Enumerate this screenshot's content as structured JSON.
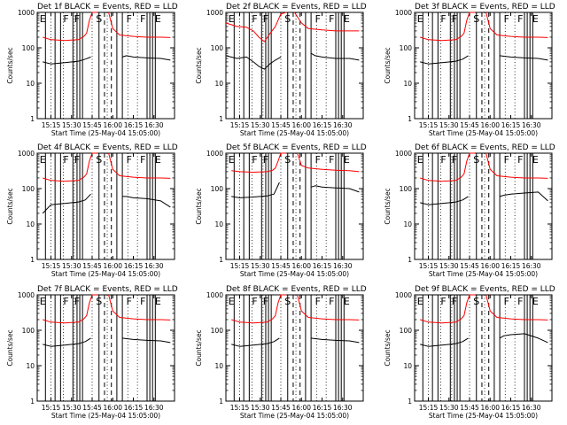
{
  "figure": {
    "common": {
      "xlabel": "Start Time (25-May-04 15:05:00)",
      "ylabel": "Counts/sec",
      "x_ticks": [
        "15:15",
        "15:30",
        "15:45",
        "16:00",
        "16:15",
        "16:30"
      ],
      "y_ticks": [
        "1",
        "10",
        "100",
        "1000"
      ],
      "x_range_minutes": [
        0,
        100
      ],
      "y_range": [
        1,
        1000
      ],
      "y_scale": "log",
      "series_colors": {
        "events": "#000000",
        "lld": "#ff0000"
      },
      "markers": [
        "E",
        "F",
        "F",
        "S",
        "F",
        "F",
        "E"
      ]
    }
  },
  "chart_data": [
    {
      "type": "line",
      "title": "Det 1f BLACK = Events, RED = LLD",
      "series": [
        {
          "name": "BLACK = Events",
          "color": "#000000",
          "segments": [
            {
              "x": [
                4,
                10,
                20,
                30,
                35,
                39
              ],
              "y": [
                40,
                35,
                38,
                42,
                48,
                55
              ]
            },
            {
              "x": [
                62,
                65,
                70,
                80,
                90,
                97
              ],
              "y": [
                55,
                60,
                55,
                52,
                50,
                45
              ]
            }
          ]
        },
        {
          "name": "RED = LLD",
          "color": "#ff0000",
          "segments": [
            {
              "x": [
                4,
                10,
                20,
                30,
                34,
                36,
                38,
                40,
                44
              ],
              "y": [
                200,
                170,
                160,
                170,
                210,
                260,
                600,
                1000,
                1000
              ]
            },
            {
              "x": [
                52,
                55,
                60,
                70,
                80,
                90,
                97
              ],
              "y": [
                1000,
                350,
                230,
                210,
                200,
                200,
                195
              ]
            }
          ]
        }
      ]
    },
    {
      "type": "line",
      "title": "Det 2f BLACK = Events, RED = LLD",
      "series": [
        {
          "name": "BLACK = Events",
          "color": "#000000",
          "segments": [
            {
              "x": [
                0,
                8,
                15,
                20,
                24,
                28,
                32,
                36,
                40
              ],
              "y": [
                60,
                50,
                55,
                40,
                30,
                25,
                35,
                45,
                55
              ]
            },
            {
              "x": [
                62,
                65,
                70,
                80,
                90,
                97
              ],
              "y": [
                70,
                60,
                55,
                50,
                50,
                45
              ]
            }
          ]
        },
        {
          "name": "RED = LLD",
          "color": "#ff0000",
          "segments": [
            {
              "x": [
                0,
                8,
                15,
                20,
                24,
                28,
                32,
                36,
                40,
                44
              ],
              "y": [
                500,
                400,
                380,
                300,
                200,
                150,
                250,
                400,
                900,
                1000
              ]
            },
            {
              "x": [
                50,
                55,
                60,
                70,
                80,
                90,
                97
              ],
              "y": [
                1000,
                500,
                350,
                320,
                300,
                300,
                300
              ]
            }
          ]
        }
      ]
    },
    {
      "type": "line",
      "title": "Det 3f BLACK = Events, RED = LLD",
      "series": [
        {
          "name": "BLACK = Events",
          "color": "#000000",
          "segments": [
            {
              "x": [
                4,
                10,
                20,
                30,
                35,
                39
              ],
              "y": [
                40,
                35,
                38,
                42,
                48,
                60
              ]
            },
            {
              "x": [
                62,
                65,
                70,
                80,
                90,
                97
              ],
              "y": [
                60,
                58,
                55,
                52,
                50,
                45
              ]
            }
          ]
        },
        {
          "name": "RED = LLD",
          "color": "#ff0000",
          "segments": [
            {
              "x": [
                4,
                10,
                20,
                30,
                34,
                36,
                38,
                40,
                44
              ],
              "y": [
                200,
                170,
                160,
                170,
                210,
                260,
                600,
                1000,
                1000
              ]
            },
            {
              "x": [
                52,
                55,
                60,
                70,
                80,
                90,
                97
              ],
              "y": [
                1000,
                350,
                230,
                210,
                200,
                200,
                195
              ]
            }
          ]
        }
      ]
    },
    {
      "type": "line",
      "title": "Det 4f BLACK = Events, RED = LLD",
      "series": [
        {
          "name": "BLACK = Events",
          "color": "#000000",
          "segments": [
            {
              "x": [
                4,
                10,
                20,
                30,
                35,
                39
              ],
              "y": [
                20,
                35,
                38,
                42,
                48,
                70
              ]
            },
            {
              "x": [
                62,
                65,
                70,
                80,
                90,
                97
              ],
              "y": [
                60,
                60,
                55,
                52,
                45,
                30
              ]
            }
          ]
        },
        {
          "name": "RED = LLD",
          "color": "#ff0000",
          "segments": [
            {
              "x": [
                4,
                10,
                20,
                30,
                34,
                36,
                38,
                40,
                44
              ],
              "y": [
                200,
                170,
                160,
                170,
                210,
                260,
                600,
                1000,
                1000
              ]
            },
            {
              "x": [
                52,
                55,
                60,
                70,
                80,
                90,
                97
              ],
              "y": [
                1000,
                350,
                230,
                210,
                200,
                200,
                195
              ]
            }
          ]
        }
      ]
    },
    {
      "type": "line",
      "title": "Det 5f BLACK = Events, RED = LLD",
      "series": [
        {
          "name": "BLACK = Events",
          "color": "#000000",
          "segments": [
            {
              "x": [
                4,
                10,
                20,
                30,
                35,
                39
              ],
              "y": [
                60,
                55,
                58,
                62,
                70,
                150
              ]
            },
            {
              "x": [
                62,
                65,
                70,
                80,
                90,
                97
              ],
              "y": [
                110,
                120,
                110,
                105,
                100,
                80
              ]
            }
          ]
        },
        {
          "name": "RED = LLD",
          "color": "#ff0000",
          "segments": [
            {
              "x": [
                4,
                10,
                20,
                30,
                34,
                36,
                38,
                40,
                44
              ],
              "y": [
                320,
                300,
                290,
                300,
                330,
                380,
                600,
                1000,
                1000
              ]
            },
            {
              "x": [
                52,
                55,
                60,
                70,
                80,
                90,
                97
              ],
              "y": [
                1000,
                450,
                380,
                350,
                330,
                320,
                300
              ]
            }
          ]
        }
      ]
    },
    {
      "type": "line",
      "title": "Det 6f BLACK = Events, RED = LLD",
      "series": [
        {
          "name": "BLACK = Events",
          "color": "#000000",
          "segments": [
            {
              "x": [
                4,
                10,
                20,
                30,
                35,
                39
              ],
              "y": [
                40,
                35,
                38,
                42,
                48,
                60
              ]
            },
            {
              "x": [
                62,
                65,
                70,
                80,
                90,
                97
              ],
              "y": [
                60,
                65,
                70,
                75,
                80,
                45
              ]
            }
          ]
        },
        {
          "name": "RED = LLD",
          "color": "#ff0000",
          "segments": [
            {
              "x": [
                4,
                10,
                20,
                30,
                34,
                36,
                38,
                40,
                44
              ],
              "y": [
                200,
                170,
                160,
                170,
                210,
                260,
                600,
                1000,
                1000
              ]
            },
            {
              "x": [
                52,
                55,
                60,
                70,
                80,
                90,
                97
              ],
              "y": [
                1000,
                350,
                230,
                210,
                200,
                200,
                195
              ]
            }
          ]
        }
      ]
    },
    {
      "type": "line",
      "title": "Det 7f BLACK = Events, RED = LLD",
      "series": [
        {
          "name": "BLACK = Events",
          "color": "#000000",
          "segments": [
            {
              "x": [
                4,
                10,
                20,
                30,
                35,
                39
              ],
              "y": [
                40,
                35,
                38,
                42,
                48,
                60
              ]
            },
            {
              "x": [
                62,
                65,
                70,
                80,
                90,
                97
              ],
              "y": [
                60,
                58,
                55,
                52,
                50,
                45
              ]
            }
          ]
        },
        {
          "name": "RED = LLD",
          "color": "#ff0000",
          "segments": [
            {
              "x": [
                4,
                10,
                20,
                30,
                34,
                36,
                38,
                40,
                44
              ],
              "y": [
                200,
                170,
                160,
                170,
                210,
                260,
                600,
                1000,
                1000
              ]
            },
            {
              "x": [
                52,
                55,
                60,
                70,
                80,
                90,
                97
              ],
              "y": [
                1000,
                350,
                230,
                210,
                200,
                200,
                195
              ]
            }
          ]
        }
      ]
    },
    {
      "type": "line",
      "title": "Det 8f BLACK = Events, RED = LLD",
      "series": [
        {
          "name": "BLACK = Events",
          "color": "#000000",
          "segments": [
            {
              "x": [
                4,
                10,
                20,
                30,
                35,
                39
              ],
              "y": [
                40,
                35,
                38,
                42,
                48,
                60
              ]
            },
            {
              "x": [
                62,
                65,
                70,
                80,
                90,
                97
              ],
              "y": [
                60,
                58,
                55,
                52,
                50,
                45
              ]
            }
          ]
        },
        {
          "name": "RED = LLD",
          "color": "#ff0000",
          "segments": [
            {
              "x": [
                4,
                10,
                20,
                30,
                34,
                36,
                38,
                40,
                44
              ],
              "y": [
                200,
                170,
                160,
                170,
                210,
                260,
                600,
                1000,
                1000
              ]
            },
            {
              "x": [
                52,
                55,
                60,
                70,
                80,
                90,
                97
              ],
              "y": [
                1000,
                350,
                230,
                210,
                200,
                200,
                195
              ]
            }
          ]
        }
      ]
    },
    {
      "type": "line",
      "title": "Det 9f BLACK = Events, RED = LLD",
      "series": [
        {
          "name": "BLACK = Events",
          "color": "#000000",
          "segments": [
            {
              "x": [
                4,
                10,
                20,
                30,
                35,
                39
              ],
              "y": [
                40,
                35,
                38,
                42,
                48,
                60
              ]
            },
            {
              "x": [
                62,
                65,
                70,
                80,
                90,
                97
              ],
              "y": [
                60,
                70,
                75,
                80,
                60,
                45
              ]
            }
          ]
        },
        {
          "name": "RED = LLD",
          "color": "#ff0000",
          "segments": [
            {
              "x": [
                4,
                10,
                20,
                30,
                34,
                36,
                38,
                40,
                44
              ],
              "y": [
                200,
                170,
                160,
                170,
                210,
                260,
                600,
                1000,
                1000
              ]
            },
            {
              "x": [
                52,
                55,
                60,
                70,
                80,
                90,
                97
              ],
              "y": [
                1000,
                350,
                230,
                210,
                200,
                200,
                195
              ]
            }
          ]
        }
      ]
    }
  ]
}
